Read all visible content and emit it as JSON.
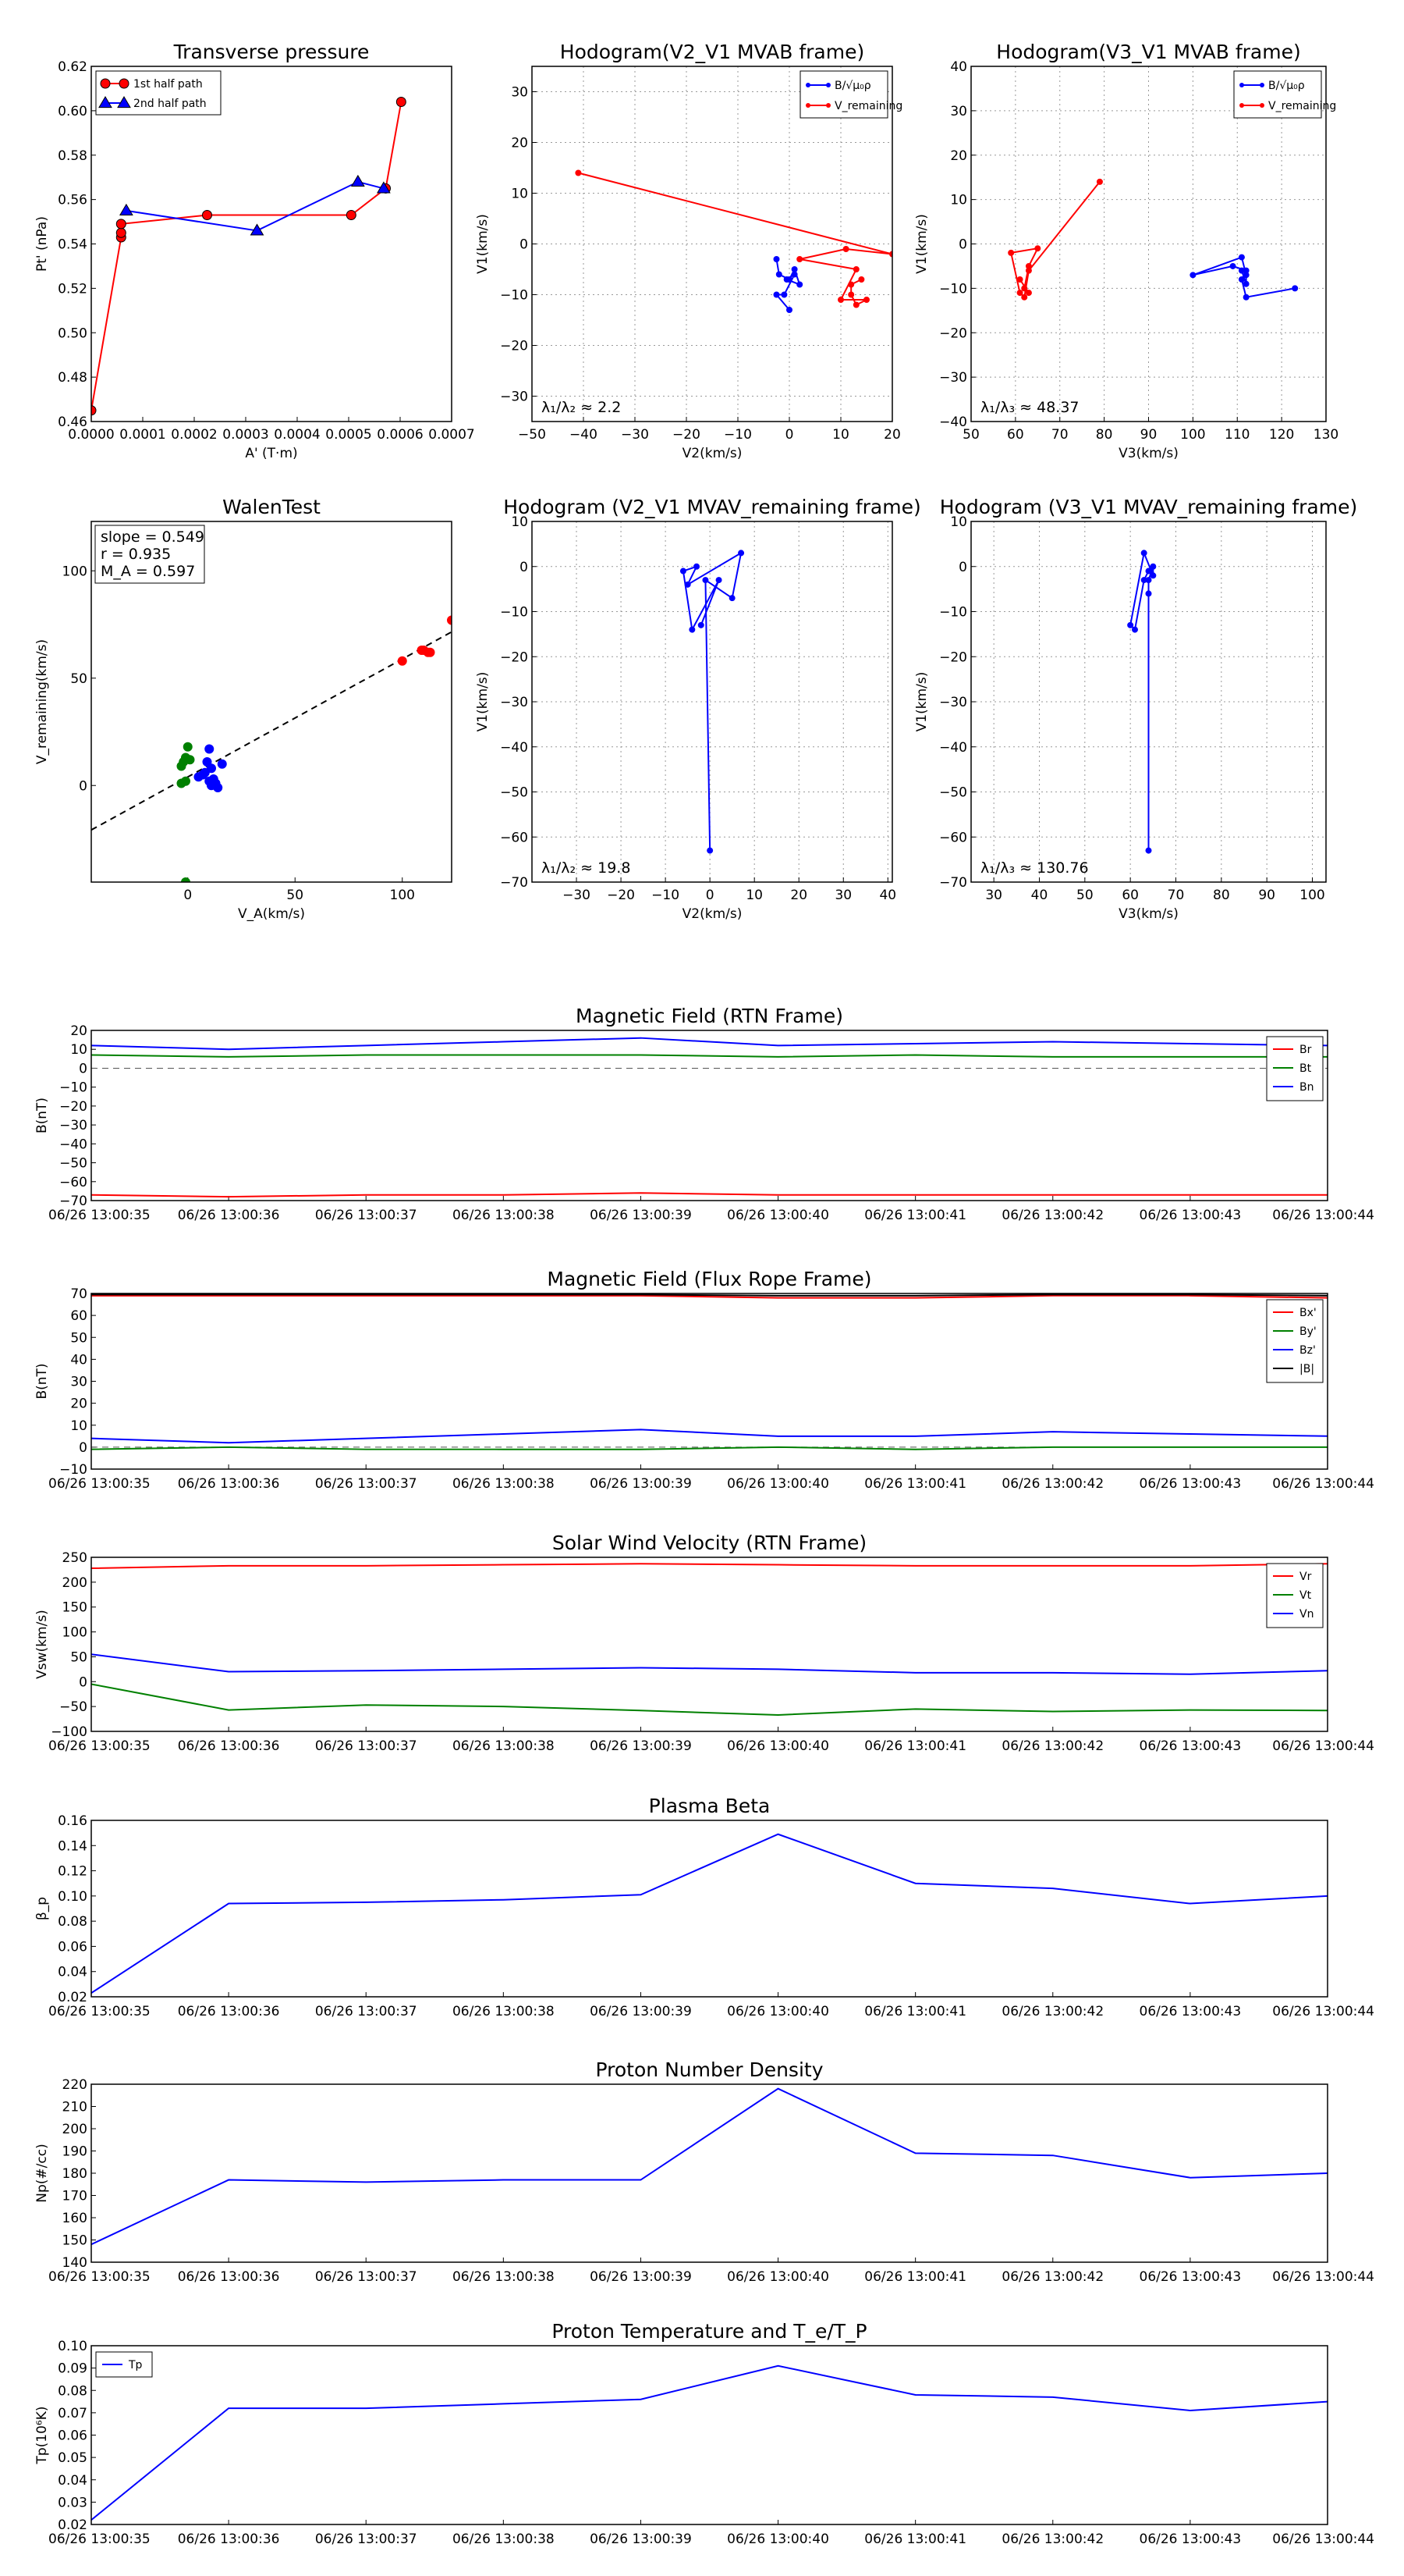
{
  "chart_data": [
    {
      "id": "transverse_pressure",
      "type": "line",
      "title": "Transverse pressure",
      "xlabel": "A' (T·m)",
      "ylabel": "Pt' (nPa)",
      "xlim": [
        0,
        0.0007
      ],
      "ylim": [
        0.46,
        0.62
      ],
      "xticks": [
        "0.0000",
        "0.0001",
        "0.0002",
        "0.0003",
        "0.0004",
        "0.0005",
        "0.0006",
        "0.0007"
      ],
      "yticks": [
        "0.46",
        "0.48",
        "0.50",
        "0.52",
        "0.54",
        "0.56",
        "0.58",
        "0.60",
        "0.62"
      ],
      "grid": false,
      "legend": "top-left",
      "series": [
        {
          "name": "1st half path",
          "color": "#ff0000",
          "marker": "circle",
          "x": [
            0.0,
            5.8e-05,
            5.8e-05,
            5.8e-05,
            0.000225,
            0.000505,
            0.000572,
            0.000602
          ],
          "y": [
            0.465,
            0.543,
            0.545,
            0.549,
            0.553,
            0.553,
            0.565,
            0.604
          ]
        },
        {
          "name": "2nd half path",
          "color": "#0000ff",
          "marker": "triangle",
          "x": [
            6.8e-05,
            0.000322,
            0.000518,
            0.000568
          ],
          "y": [
            0.555,
            0.546,
            0.568,
            0.565
          ]
        }
      ]
    },
    {
      "id": "hodogram_v2v1_mvab",
      "type": "line",
      "title": "Hodogram(V2_V1 MVAB frame)",
      "xlabel": "V2(km/s)",
      "ylabel": "V1(km/s)",
      "xlim": [
        -50,
        20
      ],
      "ylim": [
        -35,
        35
      ],
      "xticks": [
        "−50",
        "−40",
        "−30",
        "−20",
        "−10",
        "0",
        "10",
        "20"
      ],
      "yticks": [
        "−30",
        "−20",
        "−10",
        "0",
        "10",
        "20",
        "30"
      ],
      "grid": true,
      "legend": "top-right",
      "legend_labels": [
        "B/√μ₀ρ",
        "V_remaining"
      ],
      "annotation": "λ₁/λ₂ ≈ 2.2",
      "series": [
        {
          "name": "B/√μ₀ρ",
          "color": "#0000ff",
          "x": [
            -2.5,
            -2,
            0,
            1,
            2,
            -0.5,
            1,
            -1,
            -2.5,
            0
          ],
          "y": [
            -3,
            -6,
            -7,
            -5,
            -8,
            -7,
            -6,
            -10,
            -10,
            -13
          ]
        },
        {
          "name": "V_remaining",
          "color": "#ff0000",
          "x": [
            -41,
            20,
            11,
            2,
            13,
            10,
            15,
            13,
            12,
            12,
            14
          ],
          "y": [
            14,
            -2,
            -1,
            -3,
            -5,
            -11,
            -11,
            -12,
            -10,
            -8,
            -7
          ]
        }
      ]
    },
    {
      "id": "hodogram_v3v1_mvab",
      "type": "line",
      "title": "Hodogram(V3_V1 MVAB frame)",
      "xlabel": "V3(km/s)",
      "ylabel": "V1(km/s)",
      "xlim": [
        50,
        130
      ],
      "ylim": [
        -40,
        40
      ],
      "xticks": [
        "50",
        "60",
        "70",
        "80",
        "90",
        "100",
        "110",
        "120",
        "130"
      ],
      "yticks": [
        "−40",
        "−30",
        "−20",
        "−10",
        "0",
        "10",
        "20",
        "30",
        "40"
      ],
      "grid": true,
      "legend": "top-right",
      "legend_labels": [
        "B/√μ₀ρ",
        "V_remaining"
      ],
      "annotation": "λ₁/λ₃ ≈ 48.37",
      "series": [
        {
          "name": "B/√μ₀ρ",
          "color": "#0000ff",
          "x": [
            123,
            112,
            111,
            112,
            109,
            100,
            111,
            112,
            112,
            111
          ],
          "y": [
            -10,
            -12,
            -8,
            -6,
            -5,
            -7,
            -3,
            -7,
            -9,
            -6
          ]
        },
        {
          "name": "V_remaining",
          "color": "#ff0000",
          "x": [
            79,
            63,
            62,
            61,
            59,
            65,
            63,
            62,
            63,
            61
          ],
          "y": [
            14,
            -6,
            -12,
            -11,
            -2,
            -1,
            -5,
            -10,
            -11,
            -8
          ]
        }
      ]
    },
    {
      "id": "walen_test",
      "type": "scatter",
      "title": "WalenTest",
      "xlabel": "V_A(km/s)",
      "ylabel": "V_remaining(km/s)",
      "xlim": [
        -45,
        123
      ],
      "ylim": [
        -45,
        123
      ],
      "xticks": [
        "0",
        "50",
        "100"
      ],
      "yticks": [
        "0",
        "50",
        "100"
      ],
      "grid": false,
      "stats": [
        "slope = 0.549",
        "r = 0.935",
        "M_A = 0.597"
      ],
      "fit_line": {
        "slope": 0.549,
        "intercept": 4.0,
        "color": "#000000",
        "style": "dashed"
      },
      "series": [
        {
          "name": "green",
          "color": "#008000",
          "x": [
            -3,
            -1,
            0,
            -2,
            1,
            -1,
            -3,
            -1
          ],
          "y": [
            9,
            13,
            18,
            11,
            12,
            2,
            1,
            -45
          ]
        },
        {
          "name": "blue",
          "color": "#0000ff",
          "x": [
            5,
            8,
            10,
            11,
            12,
            13,
            14,
            9,
            7,
            10,
            16,
            11
          ],
          "y": [
            4,
            6,
            2,
            0,
            3,
            1,
            -1,
            11,
            5,
            17,
            10,
            8
          ]
        },
        {
          "name": "red",
          "color": "#ff0000",
          "x": [
            100,
            109,
            110,
            112,
            113,
            123
          ],
          "y": [
            58,
            63,
            63,
            62,
            62,
            77
          ]
        }
      ]
    },
    {
      "id": "hodogram_v2v1_mvav",
      "type": "line",
      "title": "Hodogram (V2_V1 MVAV_remaining frame)",
      "xlabel": "V2(km/s)",
      "ylabel": "V1(km/s)",
      "xlim": [
        -40,
        41
      ],
      "ylim": [
        -70,
        10
      ],
      "xticks": [
        "−30",
        "−20",
        "−10",
        "0",
        "10",
        "20",
        "30",
        "40"
      ],
      "yticks": [
        "−70",
        "−60",
        "−50",
        "−40",
        "−30",
        "−20",
        "−10",
        "0",
        "10"
      ],
      "grid": true,
      "annotation": "λ₁/λ₂ ≈ 19.8",
      "series": [
        {
          "name": "V_remaining",
          "color": "#0000ff",
          "x": [
            0,
            -1,
            5,
            7,
            -5,
            -3,
            -6,
            -4,
            2,
            -2
          ],
          "y": [
            -63,
            -3,
            -7,
            3,
            -4,
            0,
            -1,
            -14,
            -3,
            -13
          ]
        }
      ]
    },
    {
      "id": "hodogram_v3v1_mvav",
      "type": "line",
      "title": "Hodogram (V3_V1 MVAV_remaining frame)",
      "xlabel": "V3(km/s)",
      "ylabel": "V1(km/s)",
      "xlim": [
        25,
        103
      ],
      "ylim": [
        -70,
        10
      ],
      "xticks": [
        "30",
        "40",
        "50",
        "60",
        "70",
        "80",
        "90",
        "100"
      ],
      "yticks": [
        "−70",
        "−60",
        "−50",
        "−40",
        "−30",
        "−20",
        "−10",
        "0",
        "10"
      ],
      "grid": true,
      "annotation": "λ₁/λ₃ ≈ 130.76",
      "series": [
        {
          "name": "V_remaining",
          "color": "#0000ff",
          "x": [
            64,
            64,
            64,
            65,
            65,
            63,
            60,
            61,
            63,
            64
          ],
          "y": [
            -63,
            -6,
            -3,
            0,
            -2,
            3,
            -13,
            -14,
            -3,
            -1
          ]
        }
      ]
    },
    {
      "id": "magnetic_field_rtn",
      "type": "line",
      "title": "Magnetic Field (RTN Frame)",
      "ylabel": "B(nT)",
      "x": [
        "06/26 13:00:35",
        "06/26 13:00:36",
        "06/26 13:00:37",
        "06/26 13:00:38",
        "06/26 13:00:39",
        "06/26 13:00:40",
        "06/26 13:00:41",
        "06/26 13:00:42",
        "06/26 13:00:43",
        "06/26 13:00:44"
      ],
      "ylim": [
        -70,
        20
      ],
      "yticks": [
        "−70",
        "−60",
        "−50",
        "−40",
        "−30",
        "−20",
        "−10",
        "0",
        "10",
        "20"
      ],
      "zero_line": true,
      "legend": "top-right",
      "series": [
        {
          "name": "Br",
          "color": "#ff0000",
          "values": [
            -67,
            -68,
            -67,
            -67,
            -66,
            -67,
            -67,
            -67,
            -67,
            -67
          ]
        },
        {
          "name": "Bt",
          "color": "#008000",
          "values": [
            7,
            6,
            7,
            7,
            7,
            6,
            7,
            6,
            6,
            6
          ]
        },
        {
          "name": "Bn",
          "color": "#0000ff",
          "values": [
            12,
            10,
            12,
            14,
            16,
            12,
            13,
            14,
            13,
            12
          ]
        }
      ]
    },
    {
      "id": "magnetic_field_flux_rope",
      "type": "line",
      "title": "Magnetic Field (Flux Rope Frame)",
      "ylabel": "B(nT)",
      "x": [
        "06/26 13:00:35",
        "06/26 13:00:36",
        "06/26 13:00:37",
        "06/26 13:00:38",
        "06/26 13:00:39",
        "06/26 13:00:40",
        "06/26 13:00:41",
        "06/26 13:00:42",
        "06/26 13:00:43",
        "06/26 13:00:44"
      ],
      "ylim": [
        -10,
        70
      ],
      "yticks": [
        "−10",
        "0",
        "10",
        "20",
        "30",
        "40",
        "50",
        "60",
        "70"
      ],
      "zero_line": true,
      "legend": "top-right",
      "series": [
        {
          "name": "Bx'",
          "color": "#ff0000",
          "values": [
            69,
            69,
            69,
            69,
            69,
            68,
            68,
            69,
            69,
            68
          ]
        },
        {
          "name": "By'",
          "color": "#008000",
          "values": [
            -1,
            0,
            -1,
            -1,
            -1,
            0,
            -1,
            0,
            0,
            0
          ]
        },
        {
          "name": "Bz'",
          "color": "#0000ff",
          "values": [
            4,
            2,
            4,
            6,
            8,
            5,
            5,
            7,
            6,
            5
          ]
        },
        {
          "name": "|B|",
          "color": "#000000",
          "values": [
            69.5,
            69.5,
            69.5,
            69.5,
            69.5,
            69,
            69,
            69.5,
            69.5,
            69
          ]
        }
      ]
    },
    {
      "id": "solar_wind_velocity",
      "type": "line",
      "title": "Solar Wind Velocity (RTN Frame)",
      "ylabel": "Vsw(km/s)",
      "x": [
        "06/26 13:00:35",
        "06/26 13:00:36",
        "06/26 13:00:37",
        "06/26 13:00:38",
        "06/26 13:00:39",
        "06/26 13:00:40",
        "06/26 13:00:41",
        "06/26 13:00:42",
        "06/26 13:00:43",
        "06/26 13:00:44"
      ],
      "ylim": [
        -100,
        250
      ],
      "yticks": [
        "−100",
        "−50",
        "0",
        "50",
        "100",
        "150",
        "200",
        "250"
      ],
      "legend": "top-right",
      "series": [
        {
          "name": "Vr",
          "color": "#ff0000",
          "values": [
            228,
            233,
            233,
            235,
            237,
            235,
            233,
            233,
            233,
            237
          ]
        },
        {
          "name": "Vt",
          "color": "#008000",
          "values": [
            -5,
            -57,
            -47,
            -50,
            -58,
            -67,
            -55,
            -60,
            -57,
            -58
          ]
        },
        {
          "name": "Vn",
          "color": "#0000ff",
          "values": [
            55,
            20,
            22,
            25,
            28,
            25,
            18,
            18,
            15,
            22
          ]
        }
      ]
    },
    {
      "id": "plasma_beta",
      "type": "line",
      "title": "Plasma Beta",
      "ylabel": "β_p",
      "x": [
        "06/26 13:00:35",
        "06/26 13:00:36",
        "06/26 13:00:37",
        "06/26 13:00:38",
        "06/26 13:00:39",
        "06/26 13:00:40",
        "06/26 13:00:41",
        "06/26 13:00:42",
        "06/26 13:00:43",
        "06/26 13:00:44"
      ],
      "ylim": [
        0.02,
        0.16
      ],
      "yticks": [
        "0.02",
        "0.04",
        "0.06",
        "0.08",
        "0.10",
        "0.12",
        "0.14",
        "0.16"
      ],
      "series": [
        {
          "name": "beta",
          "color": "#0000ff",
          "values": [
            0.023,
            0.094,
            0.095,
            0.097,
            0.101,
            0.149,
            0.11,
            0.106,
            0.094,
            0.1
          ]
        }
      ]
    },
    {
      "id": "proton_number_density",
      "type": "line",
      "title": "Proton Number Density",
      "ylabel": "Np(#/cc)",
      "x": [
        "06/26 13:00:35",
        "06/26 13:00:36",
        "06/26 13:00:37",
        "06/26 13:00:38",
        "06/26 13:00:39",
        "06/26 13:00:40",
        "06/26 13:00:41",
        "06/26 13:00:42",
        "06/26 13:00:43",
        "06/26 13:00:44"
      ],
      "ylim": [
        140,
        220
      ],
      "yticks": [
        "140",
        "150",
        "160",
        "170",
        "180",
        "190",
        "200",
        "210",
        "220"
      ],
      "series": [
        {
          "name": "Np",
          "color": "#0000ff",
          "values": [
            148,
            177,
            176,
            177,
            177,
            218,
            189,
            188,
            178,
            180
          ]
        }
      ]
    },
    {
      "id": "proton_temperature",
      "type": "line",
      "title": "Proton Temperature and T_e/T_P",
      "ylabel": "Tp(10⁶K)",
      "x": [
        "06/26 13:00:35",
        "06/26 13:00:36",
        "06/26 13:00:37",
        "06/26 13:00:38",
        "06/26 13:00:39",
        "06/26 13:00:40",
        "06/26 13:00:41",
        "06/26 13:00:42",
        "06/26 13:00:43",
        "06/26 13:00:44"
      ],
      "ylim": [
        0.02,
        0.1
      ],
      "yticks": [
        "0.02",
        "0.03",
        "0.04",
        "0.05",
        "0.06",
        "0.07",
        "0.08",
        "0.09",
        "0.10"
      ],
      "legend": "top-left",
      "series": [
        {
          "name": "Tp",
          "color": "#0000ff",
          "values": [
            0.022,
            0.072,
            0.072,
            0.074,
            0.076,
            0.091,
            0.078,
            0.077,
            0.071,
            0.075
          ]
        }
      ]
    }
  ]
}
